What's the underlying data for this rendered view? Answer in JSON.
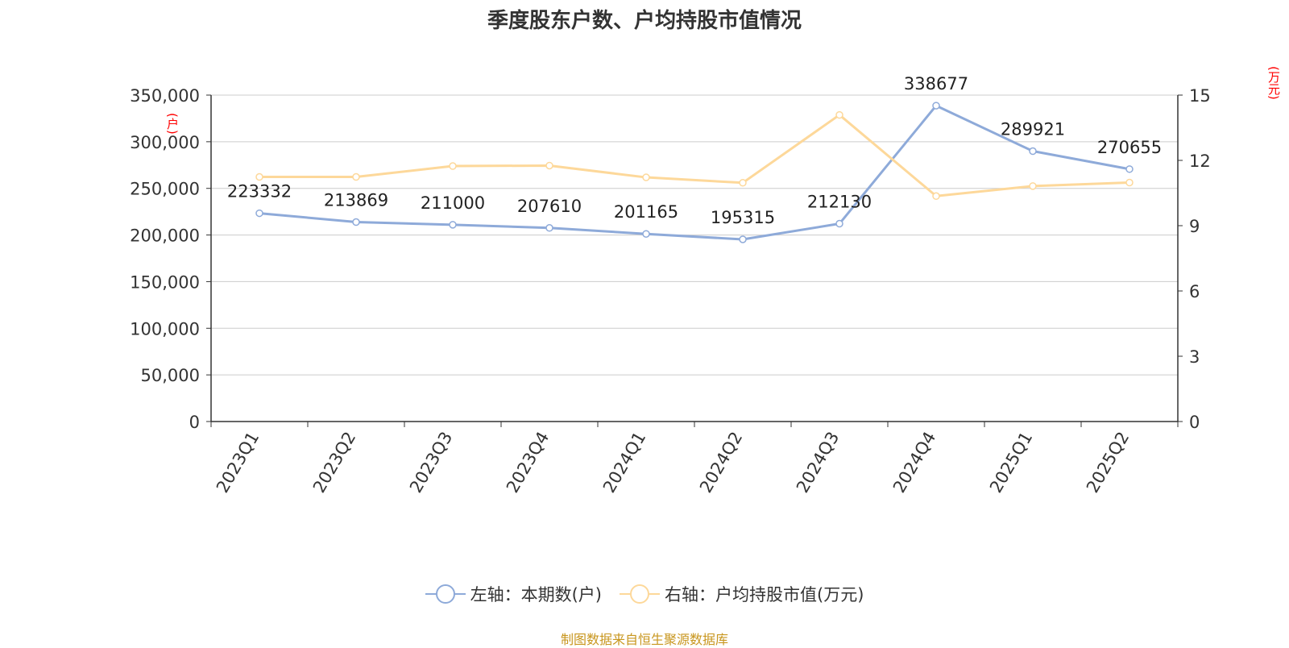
{
  "chart_data": {
    "type": "line",
    "title": "季度股东户数、户均持股市值情况",
    "categories": [
      "2023Q1",
      "2023Q2",
      "2023Q3",
      "2023Q4",
      "2024Q1",
      "2024Q2",
      "2024Q3",
      "2024Q4",
      "2025Q1",
      "2025Q2"
    ],
    "y_left": {
      "unit_label": "(户)",
      "ylim": [
        0,
        350000
      ],
      "ticks": [
        "0",
        "50,000",
        "100,000",
        "150,000",
        "200,000",
        "250,000",
        "300,000",
        "350,000"
      ]
    },
    "y_right": {
      "unit_label": "(万元)",
      "ylim": [
        0,
        15
      ],
      "ticks": [
        "0",
        "3",
        "6",
        "9",
        "12",
        "15"
      ]
    },
    "series": [
      {
        "name": "左轴：本期数(户)",
        "axis": "left",
        "color": "#8eaad9",
        "values": [
          223332,
          213869,
          211000,
          207610,
          201165,
          195315,
          212130,
          338677,
          289921,
          270655
        ],
        "data_labels": [
          "223332",
          "213869",
          "211000",
          "207610",
          "201165",
          "195315",
          "212130",
          "338677",
          "289921",
          "270655"
        ]
      },
      {
        "name": "右轴：户均持股市值(万元)",
        "axis": "right",
        "color": "#fdd89a",
        "values": [
          11.24,
          11.24,
          11.74,
          11.76,
          11.22,
          10.97,
          14.09,
          10.36,
          10.82,
          10.98
        ]
      }
    ],
    "grid": true,
    "legend_position": "bottom-center"
  },
  "source": "制图数据来自恒生聚源数据库"
}
